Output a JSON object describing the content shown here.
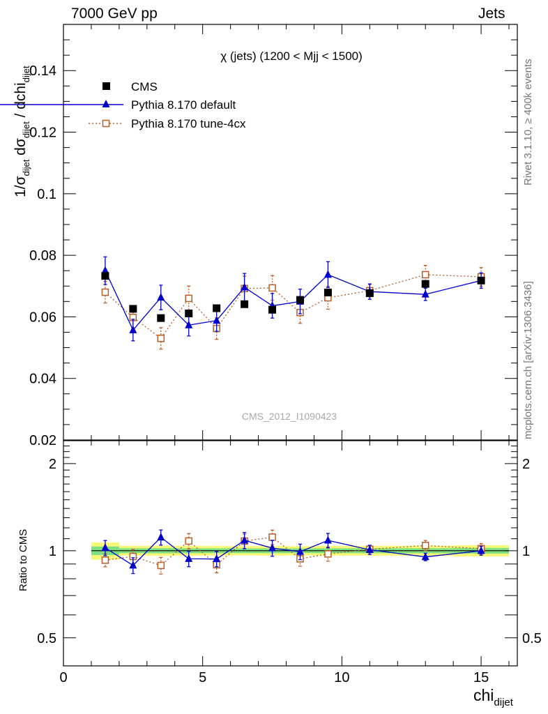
{
  "header": {
    "energy_label": "7000 GeV pp",
    "process_label": "Jets"
  },
  "side_labels": {
    "rivet": "Rivet 3.1.10, ≥ 400k events",
    "mcplots": "mcplots.cern.ch [arXiv:1306.3436]"
  },
  "watermark": "CMS_2012_I1090423",
  "chart_data": {
    "type": "scatter",
    "title": "χ (jets) (1200 < Mjj < 1500)",
    "xlabel": "chi",
    "xlabel_sub": "dijet",
    "ylabel": "1/σdijet dσdijet / dchidijet",
    "xlim": [
      0,
      16.3
    ],
    "ylim": [
      0.02,
      0.155
    ],
    "x_ticks": [
      "0",
      "5",
      "10",
      "15"
    ],
    "y_ticks": [
      "0.02",
      "0.04",
      "0.06",
      "0.08",
      "0.1",
      "0.12",
      "0.14"
    ],
    "legend_position": "top-left",
    "x": [
      1.5,
      2.5,
      3.5,
      4.5,
      5.5,
      6.5,
      7.5,
      8.5,
      9.5,
      11.0,
      13.0,
      15.0
    ],
    "x_bin_edges": [
      1,
      2,
      3,
      4,
      5,
      6,
      7,
      8,
      9,
      10,
      12,
      14,
      16
    ],
    "series": [
      {
        "name": "CMS",
        "color": "#000000",
        "marker": "filled-square",
        "values": [
          0.0733,
          0.0626,
          0.0596,
          0.0611,
          0.0628,
          0.0641,
          0.0623,
          0.0655,
          0.0679,
          0.0677,
          0.0707,
          0.0718
        ],
        "errors": [
          0.0025,
          0.0012,
          0.0012,
          0.0012,
          0.0012,
          0.0012,
          0.0012,
          0.0012,
          0.0013,
          0.0013,
          0.0014,
          0.0016
        ]
      },
      {
        "name": "Pythia 8.170 default",
        "color": "#0000cc",
        "marker": "filled-triangle",
        "line": "solid",
        "values": [
          0.075,
          0.0557,
          0.0663,
          0.0573,
          0.0588,
          0.0696,
          0.0636,
          0.065,
          0.0737,
          0.0682,
          0.0673,
          0.0718
        ],
        "errors": [
          0.0045,
          0.0035,
          0.004,
          0.0035,
          0.0035,
          0.0045,
          0.004,
          0.004,
          0.0042,
          0.0025,
          0.002,
          0.0025
        ]
      },
      {
        "name": "Pythia 8.170 tune-4cx",
        "color": "#b85c28",
        "marker": "open-square",
        "line": "dotted",
        "values": [
          0.068,
          0.0598,
          0.053,
          0.066,
          0.0562,
          0.0692,
          0.0694,
          0.0614,
          0.0662,
          0.0685,
          0.0737,
          0.073
        ],
        "errors": [
          0.0035,
          0.0035,
          0.0035,
          0.004,
          0.0035,
          0.004,
          0.004,
          0.0035,
          0.0037,
          0.002,
          0.003,
          0.003
        ]
      }
    ],
    "ratio": {
      "ylabel": "Ratio to CMS",
      "y_ticks": [
        "0.5",
        "1",
        "2"
      ],
      "ylim": [
        0.4,
        2.4
      ],
      "log_scale": true,
      "band_inner_color": "#7fe07f",
      "band_outer_color": "#f7f77a"
    }
  }
}
